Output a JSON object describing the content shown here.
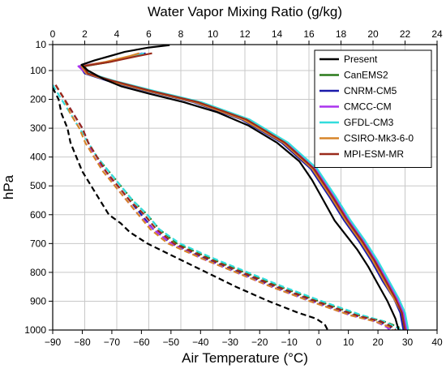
{
  "chart_data": {
    "type": "line",
    "title": "",
    "top_xlabel": "Water Vapor Mixing Ratio (g/kg)",
    "bottom_xlabel": "Air Temperature (°C)",
    "ylabel": "hPa",
    "top_xlim": [
      0,
      24
    ],
    "bottom_xlim": [
      -90,
      40
    ],
    "ylim": [
      10,
      1000
    ],
    "y_inverted": true,
    "grid": true,
    "legend_position": "top-right",
    "top_xticks": [
      0,
      2,
      4,
      6,
      8,
      10,
      12,
      14,
      16,
      18,
      20,
      22,
      24
    ],
    "bottom_xticks": [
      -90,
      -80,
      -70,
      -60,
      -50,
      -40,
      -30,
      -20,
      -10,
      0,
      10,
      20,
      30,
      40
    ],
    "yticks": [
      10,
      100,
      200,
      300,
      400,
      500,
      600,
      700,
      800,
      900,
      1000
    ],
    "series": [
      {
        "name": "Present",
        "color": "#000000",
        "mixing_ratio_gkg": [
          [
            7.3,
            12
          ],
          [
            6.0,
            20
          ],
          [
            4.5,
            35
          ],
          [
            2.6,
            65
          ],
          [
            1.8,
            80
          ],
          [
            2.2,
            100
          ],
          [
            3.2,
            130
          ],
          [
            4.3,
            155
          ],
          [
            6.0,
            180
          ],
          [
            8.2,
            210
          ],
          [
            10.3,
            245
          ],
          [
            12.2,
            290
          ],
          [
            14.0,
            350
          ],
          [
            15.4,
            415
          ],
          [
            16.2,
            480
          ],
          [
            16.9,
            550
          ],
          [
            17.6,
            620
          ],
          [
            18.3,
            670
          ],
          [
            19.0,
            720
          ],
          [
            19.7,
            780
          ],
          [
            20.3,
            840
          ],
          [
            20.9,
            900
          ],
          [
            21.4,
            960
          ],
          [
            21.6,
            1000
          ]
        ],
        "temperature_c": [
          [
            -90,
            160
          ],
          [
            -88,
            200
          ],
          [
            -87,
            250
          ],
          [
            -85,
            300
          ],
          [
            -84,
            350
          ],
          [
            -82,
            400
          ],
          [
            -80,
            450
          ],
          [
            -77,
            500
          ],
          [
            -74,
            550
          ],
          [
            -71,
            600
          ],
          [
            -67,
            630
          ],
          [
            -64,
            660
          ],
          [
            -58,
            700
          ],
          [
            -48,
            750
          ],
          [
            -38,
            800
          ],
          [
            -28,
            850
          ],
          [
            -17,
            900
          ],
          [
            -7,
            940
          ],
          [
            -1,
            960
          ],
          [
            2,
            980
          ],
          [
            3,
            1000
          ]
        ]
      },
      {
        "name": "CanEMS2",
        "color": "#2a7a1a",
        "mixing_ratio_gkg": [
          [
            5.6,
            40
          ],
          [
            5.0,
            50
          ],
          [
            3.6,
            70
          ],
          [
            2.0,
            85
          ],
          [
            2.2,
            110
          ],
          [
            3.6,
            135
          ],
          [
            6.0,
            170
          ],
          [
            9.0,
            210
          ],
          [
            12.0,
            270
          ],
          [
            14.5,
            350
          ],
          [
            16.3,
            440
          ],
          [
            17.5,
            540
          ],
          [
            18.4,
            620
          ],
          [
            19.3,
            690
          ],
          [
            20.1,
            760
          ],
          [
            20.8,
            830
          ],
          [
            21.4,
            890
          ],
          [
            21.8,
            940
          ],
          [
            22.0,
            1000
          ]
        ],
        "temperature_c": [
          [
            -89,
            150
          ],
          [
            -86,
            200
          ],
          [
            -83,
            250
          ],
          [
            -80,
            300
          ],
          [
            -78,
            350
          ],
          [
            -75,
            400
          ],
          [
            -71,
            450
          ],
          [
            -67,
            500
          ],
          [
            -63,
            550
          ],
          [
            -58,
            600
          ],
          [
            -54,
            650
          ],
          [
            -48,
            700
          ],
          [
            -37,
            750
          ],
          [
            -25,
            800
          ],
          [
            -13,
            850
          ],
          [
            0,
            900
          ],
          [
            14,
            950
          ],
          [
            22,
            970
          ],
          [
            27,
            990
          ],
          [
            27,
            1000
          ]
        ]
      },
      {
        "name": "CNRM-CM5",
        "color": "#1a1aaa",
        "mixing_ratio_gkg": [
          [
            5.8,
            40
          ],
          [
            5.1,
            50
          ],
          [
            3.5,
            70
          ],
          [
            1.7,
            85
          ],
          [
            2.0,
            110
          ],
          [
            3.4,
            135
          ],
          [
            5.8,
            170
          ],
          [
            8.8,
            210
          ],
          [
            11.8,
            270
          ],
          [
            14.3,
            350
          ],
          [
            16.1,
            440
          ],
          [
            17.3,
            540
          ],
          [
            18.2,
            620
          ],
          [
            19.1,
            690
          ],
          [
            19.9,
            760
          ],
          [
            20.6,
            830
          ],
          [
            21.3,
            890
          ],
          [
            21.7,
            940
          ],
          [
            21.9,
            1000
          ]
        ],
        "temperature_c": [
          [
            -89,
            150
          ],
          [
            -86,
            200
          ],
          [
            -83,
            250
          ],
          [
            -80,
            300
          ],
          [
            -78,
            350
          ],
          [
            -75,
            400
          ],
          [
            -72,
            450
          ],
          [
            -68,
            500
          ],
          [
            -64,
            550
          ],
          [
            -60,
            600
          ],
          [
            -56,
            650
          ],
          [
            -50,
            700
          ],
          [
            -39,
            750
          ],
          [
            -27,
            800
          ],
          [
            -15,
            850
          ],
          [
            -2,
            900
          ],
          [
            12,
            950
          ],
          [
            20,
            970
          ],
          [
            24,
            990
          ],
          [
            25,
            1000
          ]
        ]
      },
      {
        "name": "CMCC-CM",
        "color": "#aa33ee",
        "mixing_ratio_gkg": [
          [
            5.6,
            40
          ],
          [
            4.9,
            50
          ],
          [
            3.4,
            70
          ],
          [
            1.6,
            85
          ],
          [
            2.1,
            110
          ],
          [
            3.7,
            135
          ],
          [
            6.2,
            170
          ],
          [
            9.2,
            210
          ],
          [
            12.2,
            270
          ],
          [
            14.6,
            350
          ],
          [
            16.4,
            440
          ],
          [
            17.6,
            540
          ],
          [
            18.5,
            620
          ],
          [
            19.4,
            690
          ],
          [
            20.2,
            760
          ],
          [
            20.9,
            830
          ],
          [
            21.5,
            890
          ],
          [
            21.9,
            940
          ],
          [
            22.1,
            1000
          ]
        ],
        "temperature_c": [
          [
            -89,
            150
          ],
          [
            -86,
            200
          ],
          [
            -83,
            250
          ],
          [
            -80,
            300
          ],
          [
            -78,
            350
          ],
          [
            -76,
            400
          ],
          [
            -72,
            450
          ],
          [
            -69,
            500
          ],
          [
            -65,
            550
          ],
          [
            -61,
            600
          ],
          [
            -56,
            650
          ],
          [
            -50,
            700
          ],
          [
            -40,
            750
          ],
          [
            -28,
            800
          ],
          [
            -16,
            850
          ],
          [
            -3,
            900
          ],
          [
            11,
            950
          ],
          [
            19,
            970
          ],
          [
            23,
            990
          ],
          [
            24,
            1000
          ]
        ]
      },
      {
        "name": "GFDL-CM3",
        "color": "#33dddd",
        "mixing_ratio_gkg": [
          [
            5.7,
            40
          ],
          [
            5.0,
            50
          ],
          [
            3.4,
            70
          ],
          [
            1.8,
            85
          ],
          [
            2.3,
            110
          ],
          [
            3.8,
            135
          ],
          [
            6.3,
            170
          ],
          [
            9.3,
            210
          ],
          [
            12.3,
            270
          ],
          [
            14.7,
            350
          ],
          [
            16.5,
            440
          ],
          [
            17.7,
            540
          ],
          [
            18.6,
            620
          ],
          [
            19.5,
            690
          ],
          [
            20.3,
            760
          ],
          [
            21.0,
            830
          ],
          [
            21.6,
            890
          ],
          [
            22.0,
            940
          ],
          [
            22.2,
            1000
          ]
        ],
        "temperature_c": [
          [
            -90,
            150
          ],
          [
            -87,
            200
          ],
          [
            -84,
            250
          ],
          [
            -81,
            300
          ],
          [
            -78,
            350
          ],
          [
            -75,
            400
          ],
          [
            -71,
            450
          ],
          [
            -67,
            500
          ],
          [
            -63,
            550
          ],
          [
            -58,
            600
          ],
          [
            -54,
            650
          ],
          [
            -47,
            700
          ],
          [
            -36,
            750
          ],
          [
            -24,
            800
          ],
          [
            -12,
            850
          ],
          [
            1,
            900
          ],
          [
            15,
            950
          ],
          [
            22,
            970
          ],
          [
            26,
            990
          ],
          [
            28,
            1000
          ]
        ]
      },
      {
        "name": "CSIRO-Mk3-6-0",
        "color": "#d7852a",
        "mixing_ratio_gkg": [
          [
            5.4,
            40
          ],
          [
            4.8,
            50
          ],
          [
            3.3,
            70
          ],
          [
            1.8,
            85
          ],
          [
            2.1,
            110
          ],
          [
            3.5,
            135
          ],
          [
            5.9,
            170
          ],
          [
            8.9,
            210
          ],
          [
            11.9,
            270
          ],
          [
            14.4,
            350
          ],
          [
            16.2,
            440
          ],
          [
            17.4,
            540
          ],
          [
            18.3,
            620
          ],
          [
            19.2,
            690
          ],
          [
            20.0,
            760
          ],
          [
            20.7,
            830
          ],
          [
            21.3,
            890
          ],
          [
            21.8,
            940
          ],
          [
            22.0,
            1000
          ]
        ],
        "temperature_c": [
          [
            -89,
            150
          ],
          [
            -86,
            200
          ],
          [
            -84,
            250
          ],
          [
            -81,
            300
          ],
          [
            -79,
            350
          ],
          [
            -76,
            400
          ],
          [
            -73,
            450
          ],
          [
            -69,
            500
          ],
          [
            -65,
            550
          ],
          [
            -61,
            600
          ],
          [
            -57,
            650
          ],
          [
            -51,
            700
          ],
          [
            -40,
            750
          ],
          [
            -28,
            800
          ],
          [
            -16,
            850
          ],
          [
            -3,
            900
          ],
          [
            11,
            950
          ],
          [
            19,
            970
          ],
          [
            24,
            990
          ],
          [
            25,
            1000
          ]
        ]
      },
      {
        "name": "MPI-ESM-MR",
        "color": "#9a2a1a",
        "mixing_ratio_gkg": [
          [
            6.2,
            40
          ],
          [
            5.3,
            50
          ],
          [
            3.6,
            70
          ],
          [
            1.9,
            85
          ],
          [
            2.2,
            110
          ],
          [
            3.7,
            135
          ],
          [
            6.1,
            170
          ],
          [
            9.1,
            210
          ],
          [
            12.1,
            270
          ],
          [
            14.5,
            350
          ],
          [
            16.3,
            440
          ],
          [
            17.5,
            540
          ],
          [
            18.4,
            620
          ],
          [
            19.3,
            690
          ],
          [
            20.1,
            760
          ],
          [
            20.8,
            830
          ],
          [
            21.4,
            890
          ],
          [
            21.8,
            940
          ],
          [
            22.0,
            1000
          ]
        ],
        "temperature_c": [
          [
            -89,
            150
          ],
          [
            -86,
            200
          ],
          [
            -83,
            250
          ],
          [
            -80,
            300
          ],
          [
            -78,
            350
          ],
          [
            -75,
            400
          ],
          [
            -72,
            450
          ],
          [
            -68,
            500
          ],
          [
            -64,
            550
          ],
          [
            -59,
            600
          ],
          [
            -55,
            650
          ],
          [
            -49,
            700
          ],
          [
            -38,
            750
          ],
          [
            -26,
            800
          ],
          [
            -14,
            850
          ],
          [
            -1,
            900
          ],
          [
            13,
            950
          ],
          [
            21,
            970
          ],
          [
            25,
            990
          ],
          [
            26,
            1000
          ]
        ]
      }
    ]
  }
}
